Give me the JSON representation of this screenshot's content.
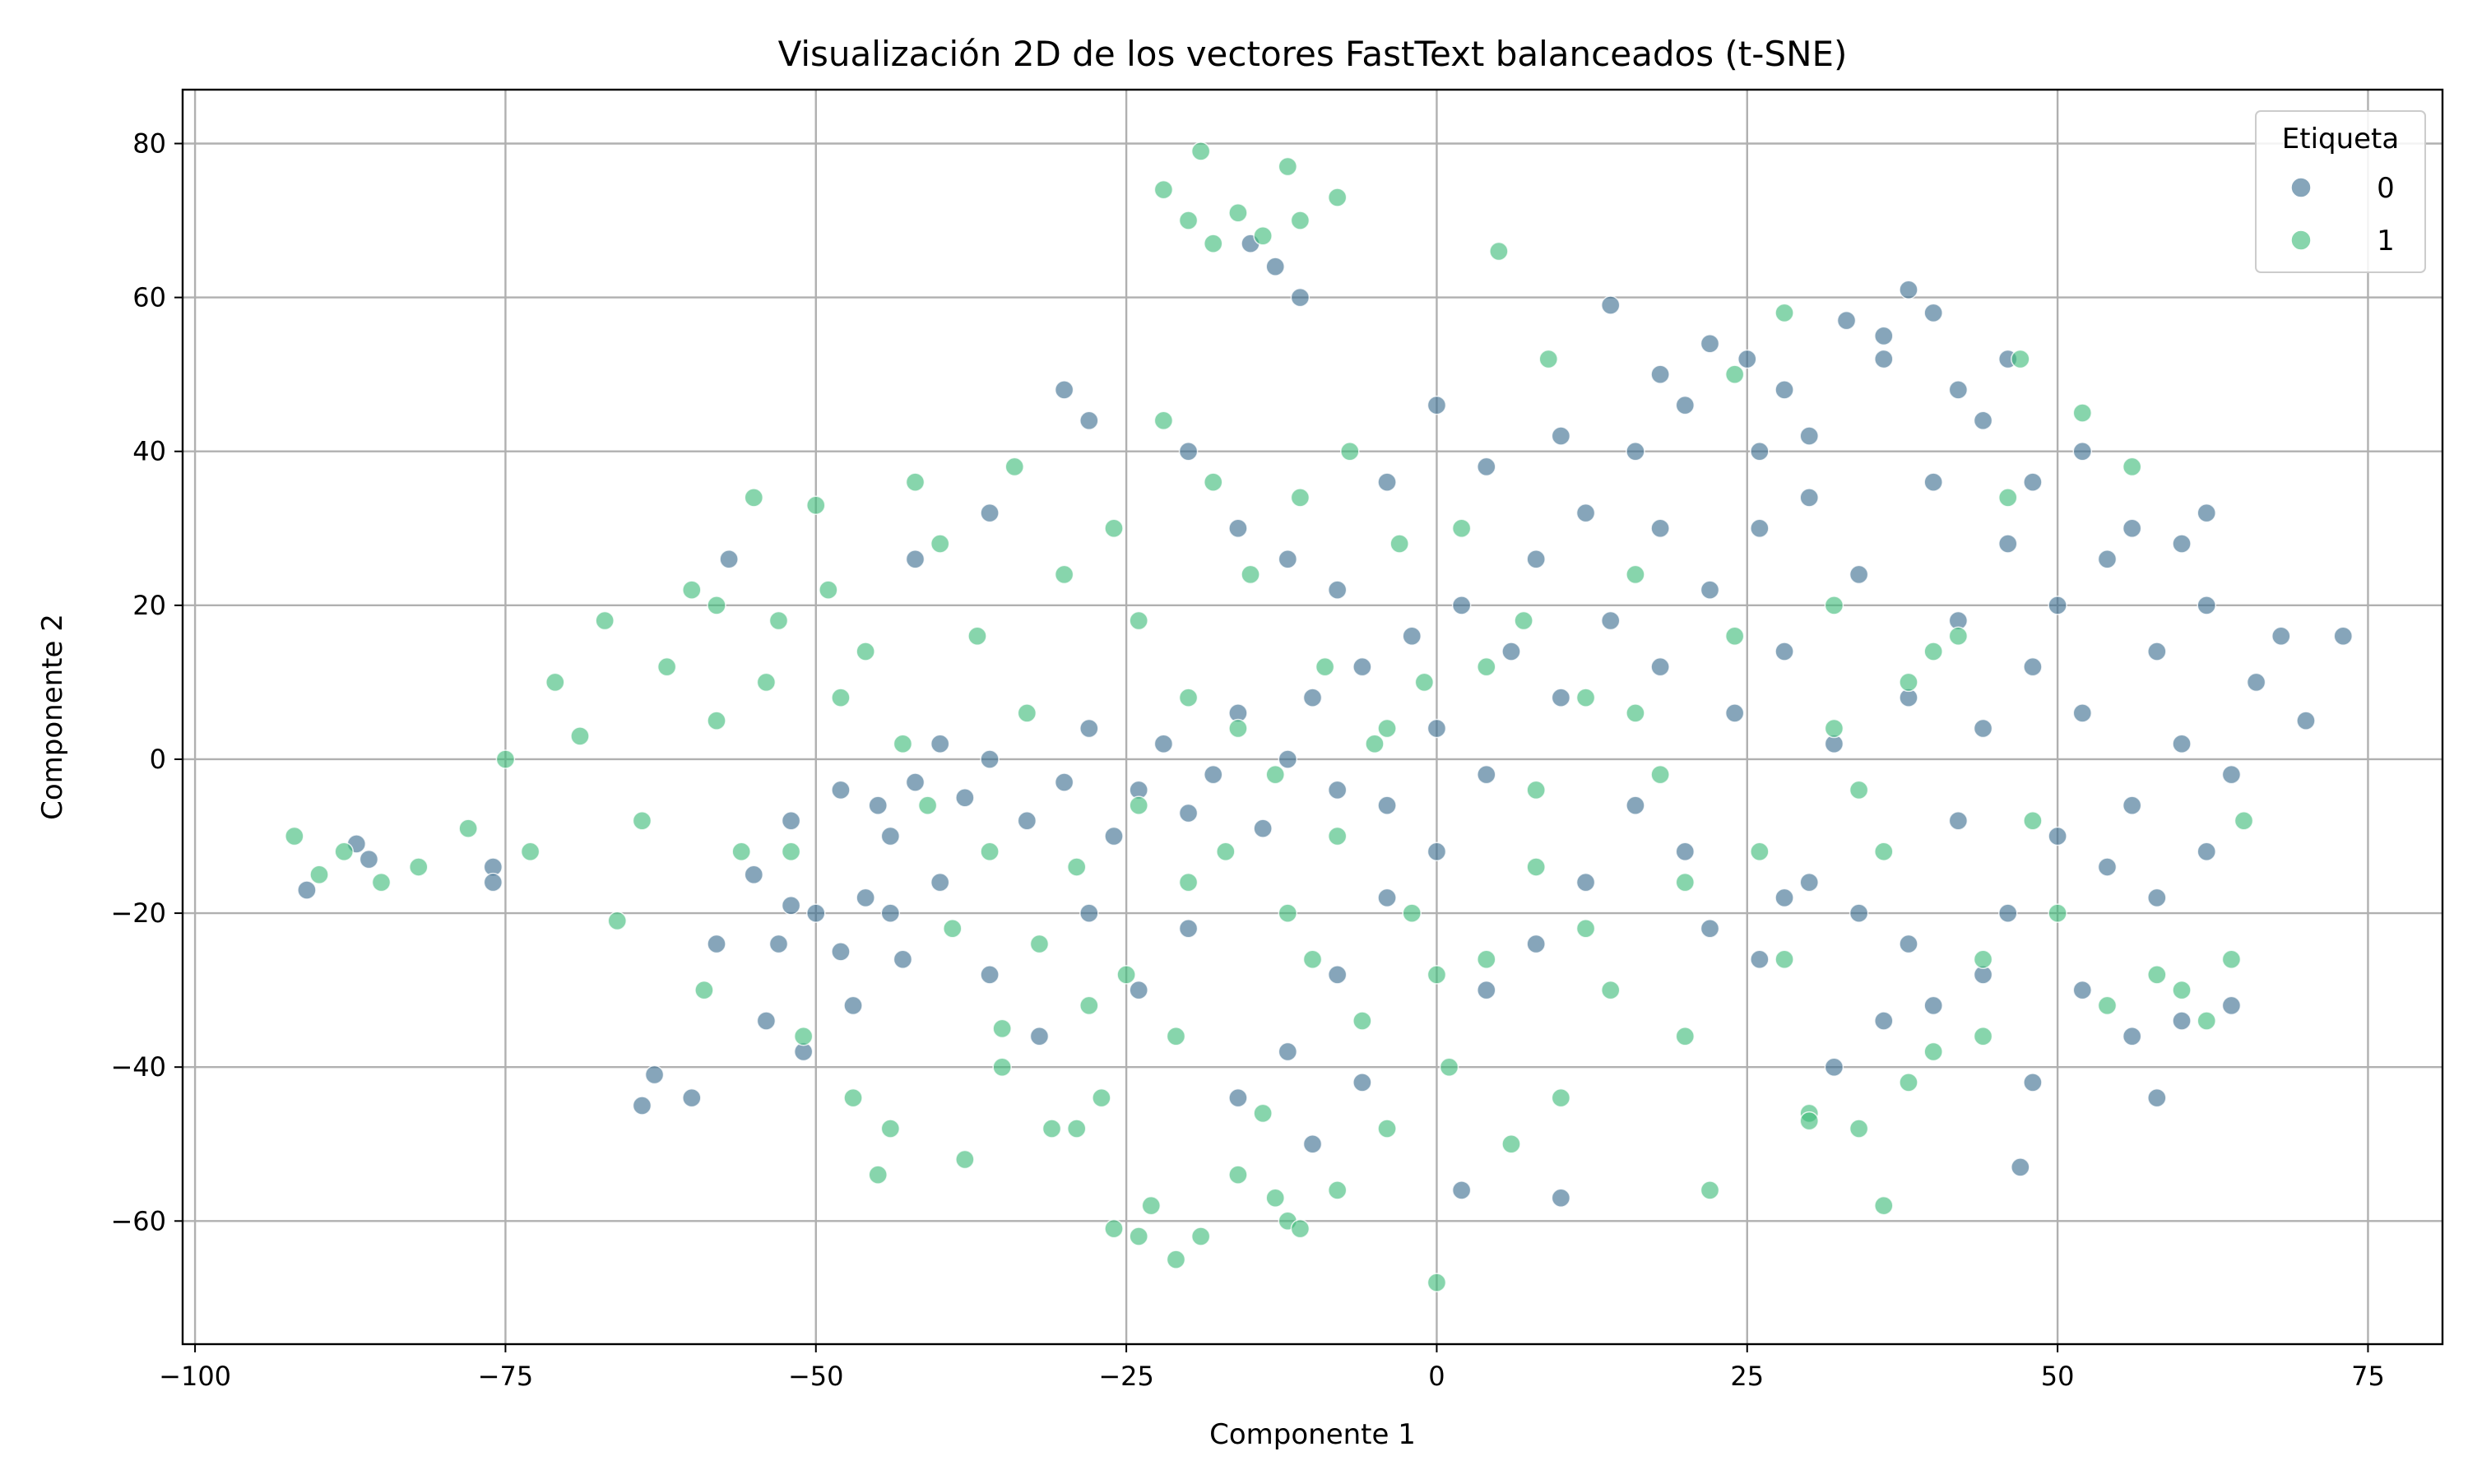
{
  "chart_data": {
    "type": "scatter",
    "title": "Visualización 2D de los vectores FastText balanceados (t-SNE)",
    "xlabel": "Componente 1",
    "ylabel": "Componente 2",
    "xlim": [
      -101,
      81
    ],
    "ylim": [
      -76,
      87
    ],
    "xticks": [
      -100,
      -75,
      -50,
      -25,
      0,
      25,
      50,
      75
    ],
    "yticks": [
      -60,
      -40,
      -20,
      0,
      20,
      40,
      60,
      80
    ],
    "xtick_labels": [
      "−100",
      "−75",
      "−50",
      "−25",
      "0",
      "25",
      "50",
      "75"
    ],
    "ytick_labels": [
      "−60",
      "−40",
      "−20",
      "0",
      "20",
      "40",
      "60",
      "80"
    ],
    "grid": true,
    "legend": {
      "title": "Etiqueta",
      "position": "top-right"
    },
    "series": [
      {
        "name": "0",
        "color": "#3b6d8f",
        "points": [
          [
            -91,
            -17
          ],
          [
            -87,
            -11
          ],
          [
            -86,
            -13
          ],
          [
            -76,
            -14
          ],
          [
            -76,
            -16
          ],
          [
            -63,
            -41
          ],
          [
            -64,
            -45
          ],
          [
            -60,
            -44
          ],
          [
            -58,
            -24
          ],
          [
            -57,
            26
          ],
          [
            -55,
            -15
          ],
          [
            -53,
            -24
          ],
          [
            -52,
            -19
          ],
          [
            -50,
            -20
          ],
          [
            -48,
            -25
          ],
          [
            -46,
            -18
          ],
          [
            -44,
            -20
          ],
          [
            -43,
            -26
          ],
          [
            -47,
            -32
          ],
          [
            -51,
            -38
          ],
          [
            -54,
            -34
          ],
          [
            -45,
            -6
          ],
          [
            -42,
            -3
          ],
          [
            -40,
            2
          ],
          [
            -38,
            -5
          ],
          [
            -36,
            0
          ],
          [
            -33,
            -8
          ],
          [
            -30,
            -3
          ],
          [
            -28,
            4
          ],
          [
            -26,
            -10
          ],
          [
            -24,
            -4
          ],
          [
            -22,
            2
          ],
          [
            -20,
            -7
          ],
          [
            -18,
            -2
          ],
          [
            -16,
            6
          ],
          [
            -14,
            -9
          ],
          [
            -12,
            0
          ],
          [
            -10,
            8
          ],
          [
            -8,
            -4
          ],
          [
            -6,
            12
          ],
          [
            -4,
            -6
          ],
          [
            -2,
            16
          ],
          [
            0,
            4
          ],
          [
            2,
            20
          ],
          [
            4,
            -2
          ],
          [
            6,
            14
          ],
          [
            8,
            26
          ],
          [
            10,
            8
          ],
          [
            12,
            32
          ],
          [
            14,
            18
          ],
          [
            16,
            40
          ],
          [
            18,
            12
          ],
          [
            20,
            46
          ],
          [
            22,
            22
          ],
          [
            24,
            6
          ],
          [
            26,
            30
          ],
          [
            28,
            14
          ],
          [
            30,
            42
          ],
          [
            32,
            2
          ],
          [
            34,
            24
          ],
          [
            36,
            52
          ],
          [
            38,
            8
          ],
          [
            40,
            36
          ],
          [
            42,
            18
          ],
          [
            44,
            4
          ],
          [
            46,
            28
          ],
          [
            48,
            12
          ],
          [
            50,
            20
          ],
          [
            52,
            6
          ],
          [
            54,
            26
          ],
          [
            56,
            -6
          ],
          [
            58,
            14
          ],
          [
            60,
            2
          ],
          [
            62,
            20
          ],
          [
            64,
            -2
          ],
          [
            66,
            10
          ],
          [
            68,
            16
          ],
          [
            70,
            5
          ],
          [
            73,
            16
          ],
          [
            38,
            61
          ],
          [
            40,
            58
          ],
          [
            36,
            55
          ],
          [
            33,
            57
          ],
          [
            28,
            48
          ],
          [
            25,
            52
          ],
          [
            22,
            54
          ],
          [
            14,
            59
          ],
          [
            18,
            50
          ],
          [
            30,
            -16
          ],
          [
            34,
            -20
          ],
          [
            22,
            -22
          ],
          [
            26,
            -26
          ],
          [
            38,
            -24
          ],
          [
            44,
            -28
          ],
          [
            40,
            -32
          ],
          [
            48,
            -42
          ],
          [
            52,
            -30
          ],
          [
            56,
            -36
          ],
          [
            60,
            -34
          ],
          [
            64,
            -32
          ],
          [
            50,
            -10
          ],
          [
            54,
            -14
          ],
          [
            58,
            -18
          ],
          [
            62,
            -12
          ],
          [
            46,
            -20
          ],
          [
            42,
            -8
          ],
          [
            20,
            -12
          ],
          [
            16,
            -6
          ],
          [
            12,
            -16
          ],
          [
            8,
            -24
          ],
          [
            4,
            -30
          ],
          [
            0,
            -12
          ],
          [
            -4,
            -18
          ],
          [
            -8,
            -28
          ],
          [
            -12,
            -38
          ],
          [
            -16,
            -44
          ],
          [
            -20,
            -22
          ],
          [
            -24,
            -30
          ],
          [
            -28,
            -20
          ],
          [
            -32,
            -36
          ],
          [
            -36,
            -28
          ],
          [
            -40,
            -16
          ],
          [
            -44,
            -10
          ],
          [
            -48,
            -4
          ],
          [
            -52,
            -8
          ],
          [
            -30,
            48
          ],
          [
            -28,
            44
          ],
          [
            -36,
            32
          ],
          [
            -42,
            26
          ],
          [
            -20,
            40
          ],
          [
            -16,
            30
          ],
          [
            -12,
            26
          ],
          [
            -8,
            22
          ],
          [
            -4,
            36
          ],
          [
            0,
            46
          ],
          [
            4,
            38
          ],
          [
            -13,
            64
          ],
          [
            -11,
            60
          ],
          [
            -15,
            67
          ],
          [
            -10,
            -50
          ],
          [
            -6,
            -42
          ],
          [
            2,
            -56
          ],
          [
            10,
            -57
          ],
          [
            28,
            -18
          ],
          [
            32,
            -40
          ],
          [
            36,
            -34
          ],
          [
            47,
            -53
          ],
          [
            58,
            -44
          ],
          [
            44,
            44
          ],
          [
            48,
            36
          ],
          [
            52,
            40
          ],
          [
            56,
            30
          ],
          [
            60,
            28
          ],
          [
            62,
            32
          ],
          [
            46,
            52
          ],
          [
            42,
            48
          ],
          [
            30,
            34
          ],
          [
            26,
            40
          ],
          [
            18,
            30
          ],
          [
            10,
            42
          ]
        ]
      },
      {
        "name": "1",
        "color": "#3dbb79",
        "points": [
          [
            -92,
            -10
          ],
          [
            -90,
            -15
          ],
          [
            -88,
            -12
          ],
          [
            -85,
            -16
          ],
          [
            -82,
            -14
          ],
          [
            -78,
            -9
          ],
          [
            -75,
            0
          ],
          [
            -73,
            -12
          ],
          [
            -71,
            10
          ],
          [
            -69,
            3
          ],
          [
            -67,
            18
          ],
          [
            -66,
            -21
          ],
          [
            -64,
            -8
          ],
          [
            -62,
            12
          ],
          [
            -60,
            22
          ],
          [
            -59,
            -30
          ],
          [
            -58,
            5
          ],
          [
            -56,
            -12
          ],
          [
            -55,
            34
          ],
          [
            -53,
            18
          ],
          [
            -51,
            -36
          ],
          [
            -50,
            33
          ],
          [
            -49,
            22
          ],
          [
            -47,
            -44
          ],
          [
            -46,
            14
          ],
          [
            -44,
            -48
          ],
          [
            -42,
            36
          ],
          [
            -41,
            -6
          ],
          [
            -40,
            28
          ],
          [
            -38,
            -52
          ],
          [
            -37,
            16
          ],
          [
            -35,
            -40
          ],
          [
            -34,
            38
          ],
          [
            -33,
            6
          ],
          [
            -31,
            -48
          ],
          [
            -30,
            24
          ],
          [
            -29,
            -14
          ],
          [
            -27,
            -44
          ],
          [
            -26,
            30
          ],
          [
            -25,
            -28
          ],
          [
            -24,
            18
          ],
          [
            -23,
            -58
          ],
          [
            -22,
            44
          ],
          [
            -21,
            -36
          ],
          [
            -20,
            8
          ],
          [
            -19,
            -62
          ],
          [
            -18,
            36
          ],
          [
            -17,
            -12
          ],
          [
            -16,
            -54
          ],
          [
            -15,
            24
          ],
          [
            -14,
            -46
          ],
          [
            -13,
            -2
          ],
          [
            -12,
            -60
          ],
          [
            -11,
            34
          ],
          [
            -10,
            -26
          ],
          [
            -9,
            12
          ],
          [
            -8,
            -56
          ],
          [
            -7,
            40
          ],
          [
            -6,
            -34
          ],
          [
            -5,
            2
          ],
          [
            -4,
            -48
          ],
          [
            -3,
            28
          ],
          [
            -2,
            -20
          ],
          [
            -1,
            10
          ],
          [
            0,
            -68
          ],
          [
            1,
            -40
          ],
          [
            2,
            30
          ],
          [
            4,
            -26
          ],
          [
            5,
            66
          ],
          [
            6,
            -50
          ],
          [
            7,
            18
          ],
          [
            8,
            -14
          ],
          [
            9,
            52
          ],
          [
            10,
            -44
          ],
          [
            12,
            8
          ],
          [
            14,
            -30
          ],
          [
            16,
            24
          ],
          [
            18,
            -2
          ],
          [
            20,
            -36
          ],
          [
            22,
            -56
          ],
          [
            24,
            50
          ],
          [
            26,
            -12
          ],
          [
            28,
            58
          ],
          [
            30,
            -46
          ],
          [
            32,
            20
          ],
          [
            34,
            -4
          ],
          [
            36,
            -58
          ],
          [
            38,
            10
          ],
          [
            40,
            -38
          ],
          [
            42,
            16
          ],
          [
            44,
            -26
          ],
          [
            46,
            34
          ],
          [
            47,
            52
          ],
          [
            48,
            -8
          ],
          [
            50,
            -20
          ],
          [
            52,
            45
          ],
          [
            54,
            -32
          ],
          [
            56,
            38
          ],
          [
            58,
            -28
          ],
          [
            60,
            -30
          ],
          [
            62,
            -34
          ],
          [
            64,
            -26
          ],
          [
            65,
            -8
          ],
          [
            -19,
            79
          ],
          [
            -22,
            74
          ],
          [
            -16,
            71
          ],
          [
            -12,
            77
          ],
          [
            -8,
            73
          ],
          [
            -14,
            68
          ],
          [
            -18,
            67
          ],
          [
            -11,
            70
          ],
          [
            -20,
            70
          ],
          [
            -24,
            -62
          ],
          [
            -21,
            -65
          ],
          [
            -26,
            -61
          ],
          [
            -11,
            -61
          ],
          [
            -13,
            -57
          ],
          [
            -29,
            -48
          ],
          [
            -35,
            -35
          ],
          [
            -45,
            -54
          ],
          [
            -52,
            -12
          ],
          [
            -48,
            8
          ],
          [
            -43,
            2
          ],
          [
            -39,
            -22
          ],
          [
            -36,
            -12
          ],
          [
            -32,
            -24
          ],
          [
            -28,
            -32
          ],
          [
            -24,
            -6
          ],
          [
            -20,
            -16
          ],
          [
            -16,
            4
          ],
          [
            -12,
            -20
          ],
          [
            -8,
            -10
          ],
          [
            -4,
            4
          ],
          [
            0,
            -28
          ],
          [
            4,
            12
          ],
          [
            8,
            -4
          ],
          [
            12,
            -22
          ],
          [
            16,
            6
          ],
          [
            20,
            -16
          ],
          [
            24,
            16
          ],
          [
            28,
            -26
          ],
          [
            32,
            4
          ],
          [
            36,
            -12
          ],
          [
            40,
            14
          ],
          [
            44,
            -36
          ],
          [
            38,
            -42
          ],
          [
            30,
            -47
          ],
          [
            34,
            -48
          ],
          [
            -54,
            10
          ],
          [
            -58,
            20
          ]
        ]
      }
    ]
  }
}
